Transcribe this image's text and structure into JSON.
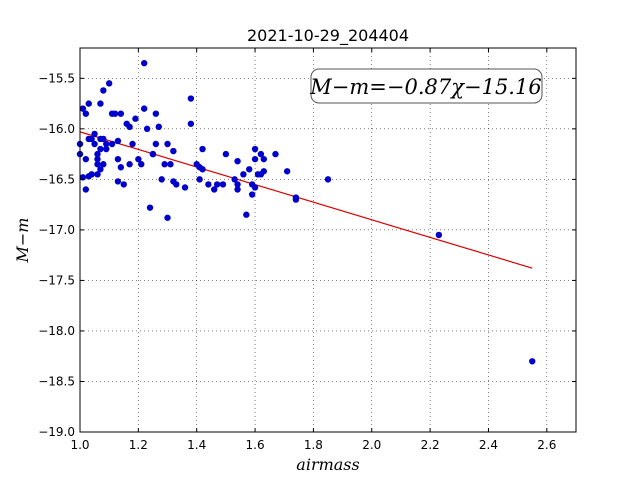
{
  "chart_data": {
    "type": "scatter",
    "title": "2021-10-29_204404",
    "xlabel": "airmass",
    "ylabel": "M−m",
    "xlim": [
      1.0,
      2.7
    ],
    "ylim": [
      -19.0,
      -15.2
    ],
    "xticks": [
      1.0,
      1.2,
      1.4,
      1.6,
      1.8,
      2.0,
      2.2,
      2.4,
      2.6
    ],
    "xtick_labels": [
      "1.0",
      "1.2",
      "1.4",
      "1.6",
      "1.8",
      "2.0",
      "2.2",
      "2.4",
      "2.6"
    ],
    "yticks": [
      -15.5,
      -16.0,
      -16.5,
      -17.0,
      -17.5,
      -18.0,
      -18.5,
      -19.0
    ],
    "ytick_labels": [
      "−15.5",
      "−16.0",
      "−16.5",
      "−17.0",
      "−17.5",
      "−18.0",
      "−18.5",
      "−19.0"
    ],
    "grid": true,
    "point_color": "#0000cc",
    "line_color": "#dd0000",
    "annotation": "M−m=−0.87χ−15.16",
    "fit": {
      "slope": -0.87,
      "intercept": -15.16,
      "x_range": [
        1.0,
        2.55
      ]
    },
    "points": {
      "x": [
        1.0,
        1.0,
        1.01,
        1.01,
        1.02,
        1.02,
        1.02,
        1.03,
        1.03,
        1.03,
        1.04,
        1.04,
        1.05,
        1.05,
        1.06,
        1.06,
        1.06,
        1.06,
        1.07,
        1.07,
        1.07,
        1.07,
        1.08,
        1.08,
        1.08,
        1.09,
        1.09,
        1.1,
        1.11,
        1.11,
        1.12,
        1.13,
        1.13,
        1.13,
        1.14,
        1.14,
        1.15,
        1.16,
        1.17,
        1.17,
        1.18,
        1.19,
        1.2,
        1.21,
        1.22,
        1.22,
        1.23,
        1.24,
        1.25,
        1.25,
        1.26,
        1.26,
        1.27,
        1.28,
        1.29,
        1.3,
        1.3,
        1.31,
        1.32,
        1.32,
        1.33,
        1.36,
        1.38,
        1.38,
        1.4,
        1.41,
        1.41,
        1.42,
        1.42,
        1.44,
        1.46,
        1.47,
        1.49,
        1.5,
        1.53,
        1.54,
        1.54,
        1.54,
        1.56,
        1.57,
        1.58,
        1.59,
        1.59,
        1.6,
        1.6,
        1.6,
        1.61,
        1.62,
        1.62,
        1.63,
        1.63,
        1.67,
        1.71,
        1.74,
        1.74,
        1.85,
        2.23,
        2.55
      ],
      "y": [
        -16.15,
        -16.25,
        -15.8,
        -16.48,
        -15.85,
        -16.3,
        -16.6,
        -15.75,
        -16.1,
        -16.47,
        -16.1,
        -16.45,
        -16.05,
        -16.15,
        -16.25,
        -16.3,
        -16.35,
        -16.45,
        -15.75,
        -16.1,
        -16.2,
        -16.4,
        -15.62,
        -16.1,
        -16.35,
        -16.15,
        -16.2,
        -15.55,
        -15.85,
        -16.15,
        -15.85,
        -16.12,
        -16.3,
        -16.52,
        -15.85,
        -16.38,
        -16.55,
        -15.95,
        -15.98,
        -16.35,
        -16.15,
        -15.9,
        -16.3,
        -16.35,
        -15.35,
        -15.8,
        -16.0,
        -16.78,
        -16.25,
        -16.25,
        -15.85,
        -16.15,
        -15.98,
        -16.5,
        -16.35,
        -16.15,
        -16.88,
        -16.35,
        -16.52,
        -16.22,
        -16.55,
        -16.58,
        -15.7,
        -15.95,
        -16.35,
        -16.38,
        -16.5,
        -16.2,
        -16.4,
        -16.55,
        -16.6,
        -16.55,
        -16.55,
        -16.25,
        -16.5,
        -16.32,
        -16.55,
        -16.6,
        -16.45,
        -16.85,
        -16.4,
        -16.55,
        -16.65,
        -16.2,
        -16.3,
        -16.58,
        -16.45,
        -16.25,
        -16.45,
        -16.3,
        -16.42,
        -16.25,
        -16.42,
        -16.68,
        -16.7,
        -16.5,
        -17.05,
        -18.3
      ]
    }
  }
}
